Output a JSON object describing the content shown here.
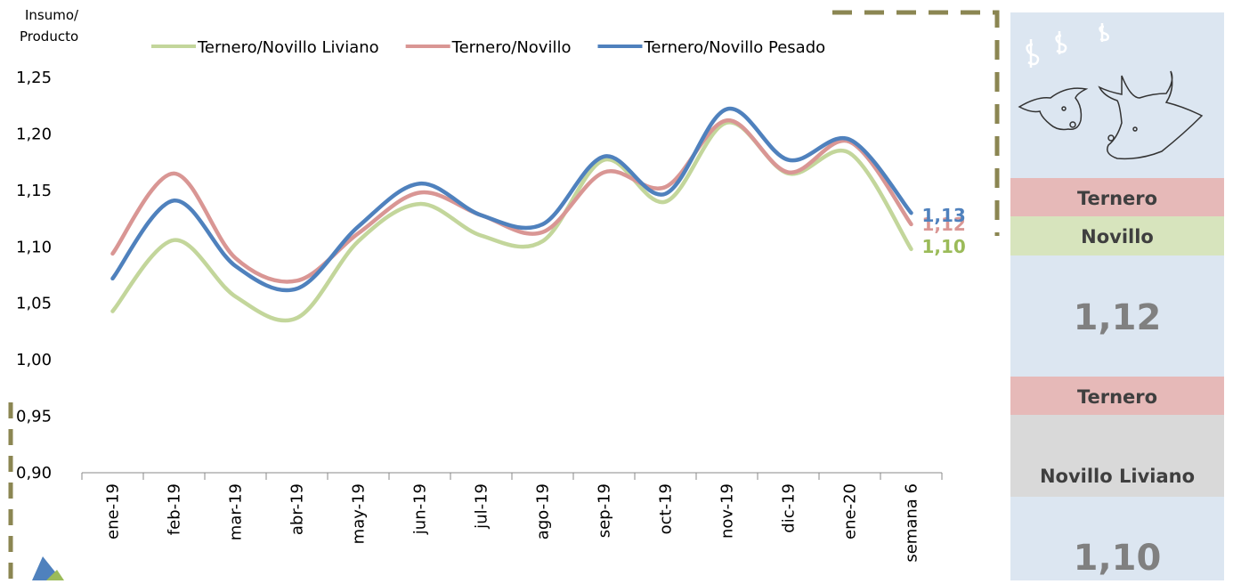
{
  "chart_data": {
    "type": "line",
    "y_label": [
      "Insumo/",
      "Producto"
    ],
    "categories": [
      "ene-19",
      "feb-19",
      "mar-19",
      "abr-19",
      "may-19",
      "jun-19",
      "jul-19",
      "ago-19",
      "sep-19",
      "oct-19",
      "nov-19",
      "dic-19",
      "ene-20",
      "semana 6"
    ],
    "series": [
      {
        "name": "Ternero/Novillo Liviano",
        "color": "#c3d69b",
        "label_color": "#9bbb59",
        "values": [
          1.043,
          1.106,
          1.056,
          1.037,
          1.105,
          1.138,
          1.11,
          1.105,
          1.177,
          1.14,
          1.21,
          1.165,
          1.183,
          1.098
        ],
        "value_labels": [
          null,
          null,
          null,
          null,
          null,
          null,
          null,
          null,
          null,
          null,
          null,
          null,
          null,
          "1,10"
        ]
      },
      {
        "name": "Ternero/Novillo",
        "color": "#d99694",
        "label_color": "#d99694",
        "values": [
          1.094,
          1.165,
          1.09,
          1.07,
          1.112,
          1.148,
          1.128,
          1.113,
          1.166,
          1.153,
          1.212,
          1.166,
          1.193,
          1.12
        ],
        "value_labels": [
          null,
          null,
          null,
          null,
          null,
          null,
          null,
          null,
          null,
          null,
          null,
          null,
          null,
          "1,12"
        ]
      },
      {
        "name": "Ternero/Novillo Pesado",
        "color": "#4f81bd",
        "label_color": "#4f81bd",
        "values": [
          1.072,
          1.141,
          1.083,
          1.063,
          1.118,
          1.156,
          1.128,
          1.12,
          1.18,
          1.147,
          1.222,
          1.177,
          1.195,
          1.13
        ],
        "value_labels": [
          null,
          null,
          null,
          null,
          null,
          null,
          null,
          null,
          null,
          null,
          null,
          null,
          null,
          "1,13"
        ]
      }
    ],
    "ylim": [
      0.9,
      1.25
    ],
    "yticks": [
      {
        "value": 0.9,
        "label": "0,90"
      },
      {
        "value": 0.95,
        "label": "0,95"
      },
      {
        "value": 1.0,
        "label": "1,00"
      },
      {
        "value": 1.05,
        "label": "1,05"
      },
      {
        "value": 1.1,
        "label": "1,10"
      },
      {
        "value": 1.15,
        "label": "1,15"
      },
      {
        "value": 1.2,
        "label": "1,20"
      },
      {
        "value": 1.25,
        "label": "1,25"
      }
    ],
    "grid": false,
    "legend": "top",
    "smooth": true
  },
  "panel": {
    "blocks": [
      {
        "title": "Ternero",
        "subtitle": "Novillo",
        "value": "1,12"
      },
      {
        "title": "Ternero",
        "subtitle": "Novillo Liviano",
        "value": "1,10"
      }
    ]
  }
}
